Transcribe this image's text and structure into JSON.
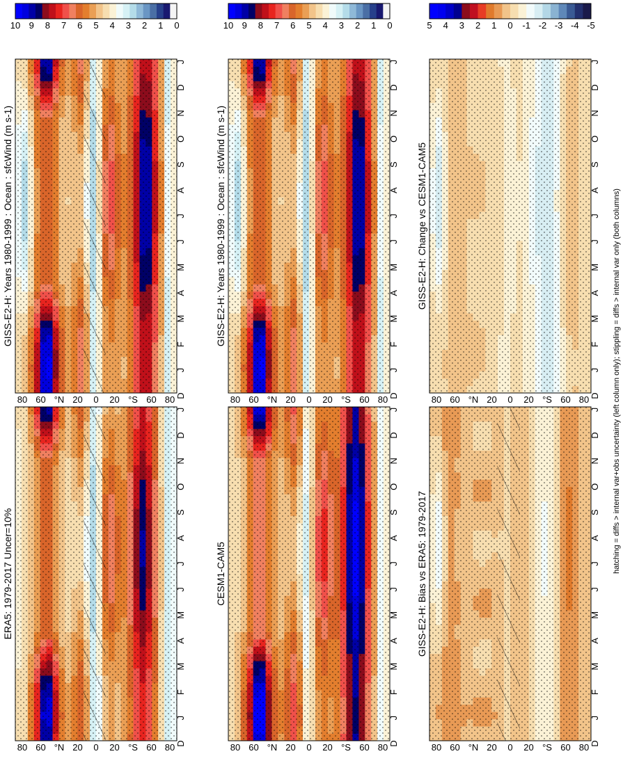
{
  "figure": {
    "footnote": "hatching = diffs > internal var+obs uncertainty (left column only); stippling = diffs > internal var only (both columns)"
  },
  "palettes": {
    "abs": [
      "#f5f5f5",
      "#191970",
      "#27408b",
      "#4a6fa5",
      "#6a96c4",
      "#8fb9d8",
      "#b4dce9",
      "#d6f1f5",
      "#f0fbfb",
      "#fbf2d6",
      "#f7deb0",
      "#f2c48a",
      "#ea9f55",
      "#e37e2e",
      "#d9652a",
      "#f08060",
      "#f0504a",
      "#e8241f",
      "#c0101a",
      "#8c0c1c",
      "#000066",
      "#0000a6",
      "#0000de",
      "#0000ff"
    ],
    "diff": [
      "#1a1a4a",
      "#23306e",
      "#3a5a94",
      "#5f88b9",
      "#8ab3d2",
      "#b3d7e6",
      "#d8eef3",
      "#f2fbfb",
      "#fbf2d6",
      "#f7deb0",
      "#f2c48a",
      "#e89a55",
      "#e07a2c",
      "#e83c24",
      "#c01020",
      "#8c0c1c",
      "#000090",
      "#0000c8",
      "#0000f0",
      "#0000ff"
    ]
  },
  "colorbars": {
    "abs_ticks": [
      "10",
      "9",
      "8",
      "7",
      "6",
      "5",
      "4",
      "3",
      "2",
      "1",
      "0"
    ],
    "diff_ticks": [
      "5",
      "4",
      "3",
      "2",
      "1",
      "0",
      "-1",
      "-2",
      "-3",
      "-4",
      "-5"
    ]
  },
  "chart_data": [
    {
      "type": "heatmap",
      "id": "p_model",
      "title": "GISS-E2-H: Years 1980-1999 : Ocean : sfcWind (m s",
      "title_sup": "-1",
      "title_tail": ")",
      "x_categories": [
        "D",
        "J",
        "F",
        "M",
        "A",
        "M",
        "J",
        "J",
        "A",
        "S",
        "O",
        "N",
        "D",
        "J"
      ],
      "y_ticks": [
        "80",
        "60",
        "°N",
        "20",
        "0",
        "20",
        "°S",
        "60",
        "80"
      ],
      "y_range_deg": [
        -90,
        90
      ],
      "z_range": [
        0,
        10
      ],
      "field": "model",
      "stipple": true,
      "hatch": true
    },
    {
      "type": "heatmap",
      "id": "p_model2",
      "title": "GISS-E2-H: Years 1980-1999 : Ocean : sfcWind (m s",
      "title_sup": "-1",
      "title_tail": ")",
      "x_categories": [
        "D",
        "J",
        "F",
        "M",
        "A",
        "M",
        "J",
        "J",
        "A",
        "S",
        "O",
        "N",
        "D",
        "J"
      ],
      "y_ticks": [
        "80",
        "60",
        "°N",
        "20",
        "0",
        "20",
        "°S",
        "60",
        "80"
      ],
      "y_range_deg": [
        -90,
        90
      ],
      "z_range": [
        0,
        10
      ],
      "field": "model",
      "stipple": true,
      "hatch": false
    },
    {
      "type": "heatmap",
      "id": "p_era5",
      "title": "ERA5: 1979-2017 Uncer=10%",
      "x_categories": [
        "D",
        "J",
        "F",
        "M",
        "A",
        "M",
        "J",
        "J",
        "A",
        "S",
        "O",
        "N",
        "D",
        "J"
      ],
      "y_ticks": [
        "80",
        "60",
        "°N",
        "20",
        "0",
        "20",
        "°S",
        "60",
        "80"
      ],
      "y_range_deg": [
        -90,
        90
      ],
      "z_range": [
        0,
        10
      ],
      "field": "obs",
      "stipple": true,
      "hatch": true
    },
    {
      "type": "heatmap",
      "id": "p_cesm",
      "title": "CESM1-CAM5",
      "x_categories": [
        "D",
        "J",
        "F",
        "M",
        "A",
        "M",
        "J",
        "J",
        "A",
        "S",
        "O",
        "N",
        "D",
        "J"
      ],
      "y_ticks": [
        "80",
        "60",
        "°N",
        "20",
        "0",
        "20",
        "°S",
        "60",
        "80"
      ],
      "y_range_deg": [
        -90,
        90
      ],
      "z_range": [
        0,
        10
      ],
      "field": "cesm",
      "stipple": true,
      "hatch": false
    },
    {
      "type": "heatmap",
      "id": "p_bias",
      "title": "GISS-E2-H: Bias vs ERA5: 1979-2017",
      "x_categories": [
        "D",
        "J",
        "F",
        "M",
        "A",
        "M",
        "J",
        "J",
        "A",
        "S",
        "O",
        "N",
        "D",
        "J"
      ],
      "y_ticks": [
        "80",
        "60",
        "°N",
        "20",
        "0",
        "20",
        "°S",
        "60",
        "80"
      ],
      "y_range_deg": [
        -90,
        90
      ],
      "z_range": [
        -5,
        5
      ],
      "field": "bias",
      "stipple": true,
      "hatch": true
    },
    {
      "type": "heatmap",
      "id": "p_change",
      "title": "GISS-E2-H: Change vs CESM1-CAM5",
      "x_categories": [
        "D",
        "J",
        "F",
        "M",
        "A",
        "M",
        "J",
        "J",
        "A",
        "S",
        "O",
        "N",
        "D",
        "J"
      ],
      "y_ticks": [
        "80",
        "60",
        "°N",
        "20",
        "0",
        "20",
        "°S",
        "60",
        "80"
      ],
      "y_range_deg": [
        -90,
        90
      ],
      "z_range": [
        -5,
        5
      ],
      "field": "change",
      "stipple": true,
      "hatch": false
    }
  ]
}
